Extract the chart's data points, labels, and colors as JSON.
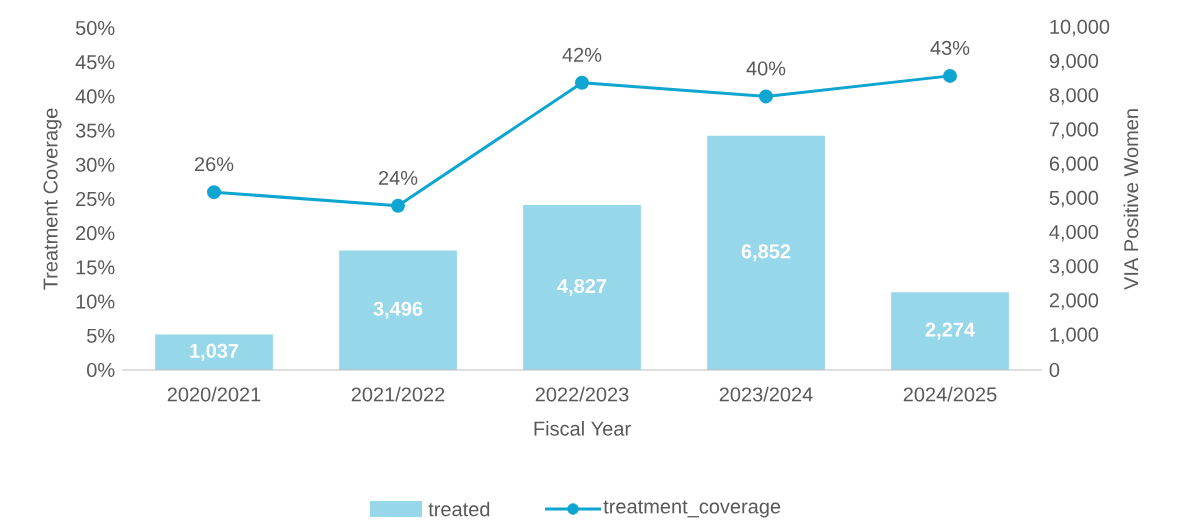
{
  "chart_data": {
    "type": "bar",
    "xlabel": "Fiscal Year",
    "ylabel": "Treatment Coverage",
    "y2label": "VIA Positive Women",
    "categories": [
      "2020/2021",
      "2021/2022",
      "2022/2023",
      "2023/2024",
      "2024/2025"
    ],
    "series": [
      {
        "name": "treated",
        "axis": "y2",
        "color": "#97d7ea",
        "values": [
          1037,
          3496,
          4827,
          6852,
          2274
        ],
        "value_labels": [
          "1,037",
          "3,496",
          "4,827",
          "6,852",
          "2,274"
        ]
      },
      {
        "name": "treatment_coverage",
        "type": "line",
        "axis": "y",
        "color": "#0ea5d0",
        "marker": "circle",
        "values": [
          26,
          24,
          42,
          40,
          43
        ],
        "value_labels": [
          "26%",
          "24%",
          "42%",
          "40%",
          "43%"
        ]
      }
    ],
    "ylim": [
      0,
      50
    ],
    "yticks": [
      {
        "value": 0,
        "label": "0%"
      },
      {
        "value": 5,
        "label": "5%"
      },
      {
        "value": 10,
        "label": "10%"
      },
      {
        "value": 15,
        "label": "15%"
      },
      {
        "value": 20,
        "label": "20%"
      },
      {
        "value": 25,
        "label": "25%"
      },
      {
        "value": 30,
        "label": "30%"
      },
      {
        "value": 35,
        "label": "35%"
      },
      {
        "value": 40,
        "label": "40%"
      },
      {
        "value": 45,
        "label": "45%"
      },
      {
        "value": 50,
        "label": "50%"
      }
    ],
    "y2lim": [
      0,
      10000
    ],
    "y2ticks": [
      0,
      {
        "value": 1000,
        "label": "1,000"
      },
      {
        "value": 2000,
        "label": "2,000"
      },
      {
        "value": 3000,
        "label": "3,000"
      },
      {
        "value": 4000,
        "label": "4,000"
      },
      {
        "value": 5000,
        "label": "5,000"
      },
      {
        "value": 6000,
        "label": "6,000"
      },
      {
        "value": 7000,
        "label": "7,000"
      },
      {
        "value": 8000,
        "label": "8,000"
      },
      {
        "value": 9000,
        "label": "9,000"
      },
      {
        "value": 10000,
        "label": "10,000"
      }
    ],
    "legend": "bottom",
    "grid": false
  }
}
